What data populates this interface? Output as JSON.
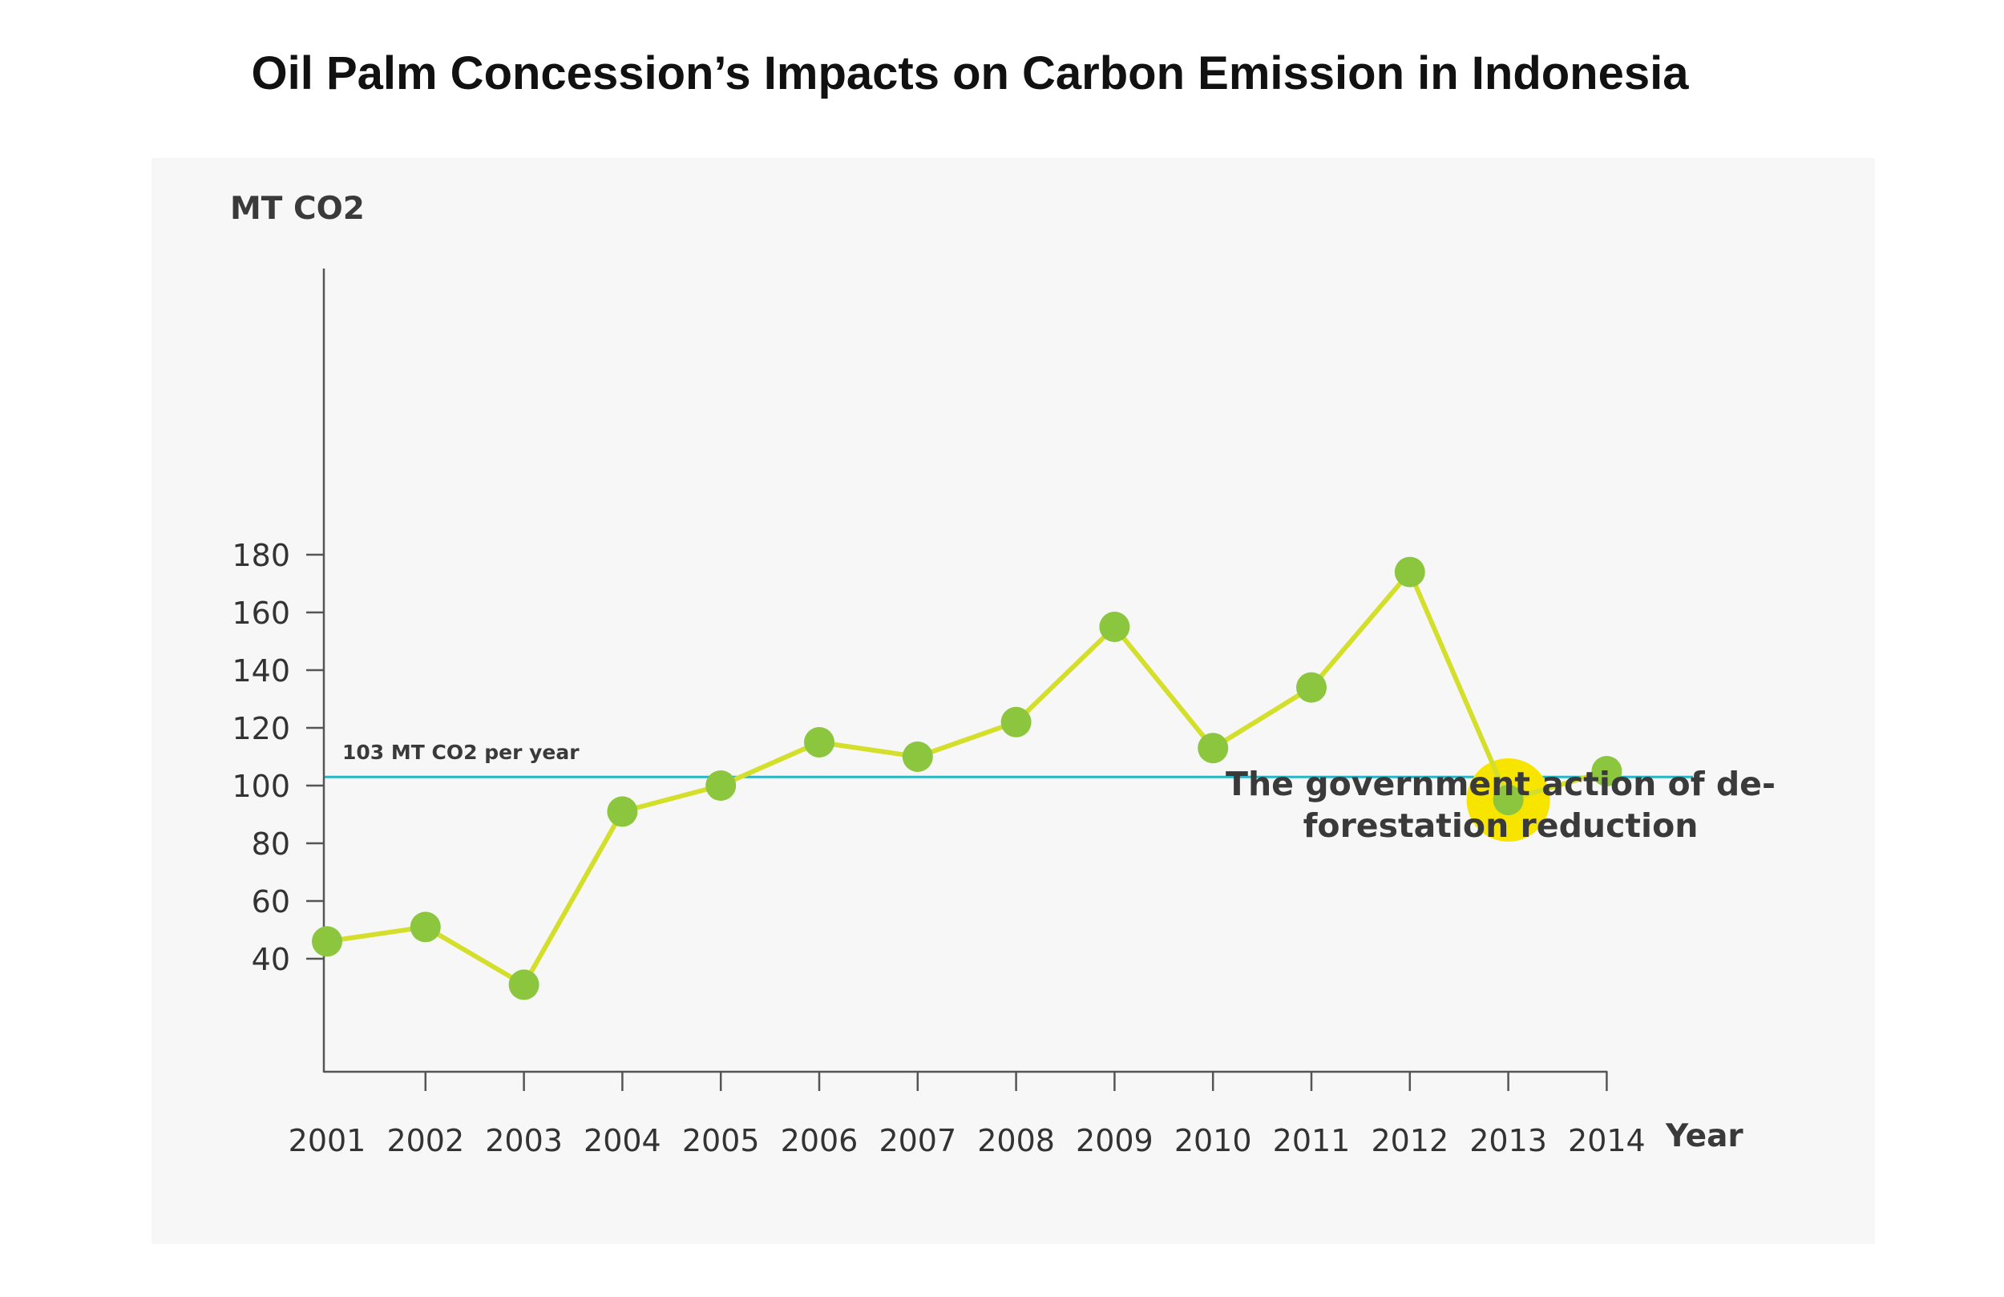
{
  "chart_data": {
    "type": "line",
    "title": "Oil Palm Concession’s Impacts on Carbon Emission in Indonesia",
    "xlabel": "Year",
    "ylabel": "MT CO2",
    "categories": [
      "2001",
      "2002",
      "2003",
      "2004",
      "2005",
      "2006",
      "2007",
      "2008",
      "2009",
      "2010",
      "2011",
      "2012",
      "2013",
      "2014"
    ],
    "series": [
      {
        "values": [
          46,
          51,
          31,
          91,
          100,
          115,
          110,
          122,
          155,
          113,
          134,
          174,
          95,
          105
        ]
      }
    ],
    "yticks": [
      40,
      60,
      80,
      100,
      120,
      140,
      160,
      180
    ],
    "ylim": [
      18,
      186
    ],
    "reference_line": {
      "value": 103,
      "label": "103 MT CO2 per year"
    },
    "highlight": {
      "category": "2013",
      "annotation": [
        "The government action of de-",
        "forestation reduction"
      ]
    },
    "grid": false,
    "colors": {
      "line": "#d4df2c",
      "marker": "#8cc63f",
      "reference": "#29b6c6",
      "highlight": "#f7e500",
      "axis": "#555555"
    }
  }
}
